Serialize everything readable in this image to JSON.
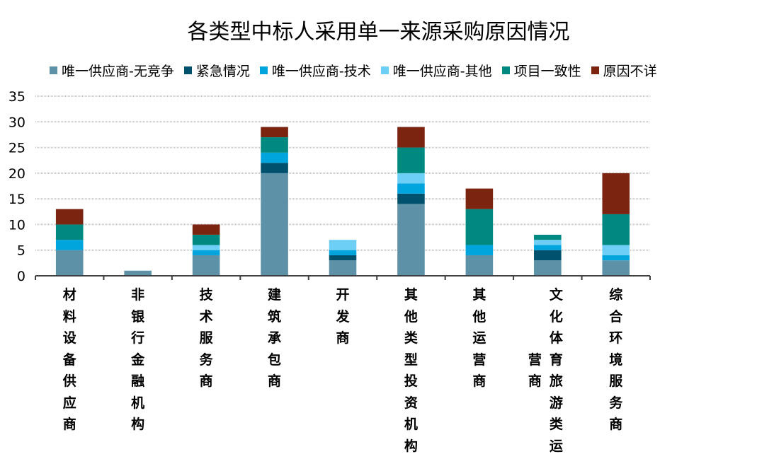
{
  "chart_data": {
    "type": "bar",
    "stacked": true,
    "title": "各类型中标人采用单一来源采购原因情况",
    "categories": [
      "材料设备供应商",
      "非银行金融机构",
      "技术服务商",
      "建筑承包商",
      "开发商",
      "其他类型投资机构",
      "其他运营商",
      "文化体育旅游类运营商",
      "综合环境服务商"
    ],
    "series": [
      {
        "name": "唯一供应商-无竞争",
        "color": "#5d91a7",
        "values": [
          5,
          1,
          4,
          20,
          3,
          14,
          4,
          3,
          3
        ]
      },
      {
        "name": "紧急情况",
        "color": "#00516e",
        "values": [
          0,
          0,
          0,
          2,
          1,
          2,
          0,
          2,
          0
        ]
      },
      {
        "name": "唯一供应商-技术",
        "color": "#00a5de",
        "values": [
          2,
          0,
          1,
          2,
          1,
          2,
          2,
          1,
          1
        ]
      },
      {
        "name": "唯一供应商-其他",
        "color": "#6dcff6",
        "values": [
          0,
          0,
          1,
          0,
          2,
          2,
          0,
          1,
          2
        ]
      },
      {
        "name": "项目一致性",
        "color": "#008980",
        "values": [
          3,
          0,
          2,
          3,
          0,
          5,
          7,
          1,
          6
        ]
      },
      {
        "name": "原因不详",
        "color": "#7b2511",
        "values": [
          3,
          0,
          2,
          2,
          0,
          4,
          4,
          0,
          8
        ]
      }
    ],
    "ylim": [
      0,
      35
    ],
    "yticks": [
      0,
      5,
      10,
      15,
      20,
      25,
      30,
      35
    ],
    "grid": true,
    "legend": "top"
  }
}
